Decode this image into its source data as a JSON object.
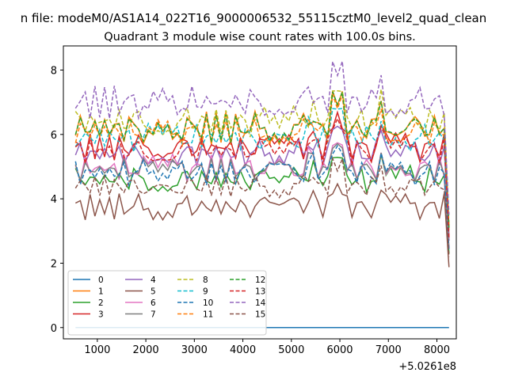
{
  "chart_data": {
    "type": "line",
    "suptitle": "n file: modeM0/AS1A14_022T16_9000006532_55115cztM0_level2_quad_clean",
    "title": "Quadrant 3 module wise count rates with 100.0s bins.",
    "xlabel": "",
    "ylabel": "",
    "x_offset_label": "+5.0261e8",
    "xlim": [
      300,
      8400
    ],
    "ylim": [
      -0.35,
      8.75
    ],
    "xticks": [
      1000,
      2000,
      3000,
      4000,
      5000,
      6000,
      7000,
      8000
    ],
    "yticks": [
      0,
      2,
      4,
      6,
      8
    ],
    "grid": false,
    "legend": {
      "placement": "lower-left",
      "columns": 4
    },
    "x_start": 550,
    "x_step": 100,
    "n_points": 78,
    "series": [
      {
        "name": "0",
        "color": "#1f77b4",
        "dashed": false,
        "base": 0.0,
        "amp": 0.0
      },
      {
        "name": "1",
        "color": "#ff7f0e",
        "dashed": false,
        "base": 6.2,
        "amp": 0.35
      },
      {
        "name": "2",
        "color": "#2ca02c",
        "dashed": false,
        "base": 4.6,
        "amp": 0.3
      },
      {
        "name": "3",
        "color": "#d62728",
        "dashed": false,
        "base": 5.6,
        "amp": 0.3
      },
      {
        "name": "4",
        "color": "#9467bd",
        "dashed": false,
        "base": 5.4,
        "amp": 0.3
      },
      {
        "name": "5",
        "color": "#8c564b",
        "dashed": false,
        "base": 3.75,
        "amp": 0.28
      },
      {
        "name": "6",
        "color": "#e377c2",
        "dashed": false,
        "base": 4.95,
        "amp": 0.3
      },
      {
        "name": "7",
        "color": "#7f7f7f",
        "dashed": false,
        "base": 4.9,
        "amp": 0.25
      },
      {
        "name": "8",
        "color": "#bcbd22",
        "dashed": true,
        "base": 6.4,
        "amp": 0.35
      },
      {
        "name": "9",
        "color": "#17becf",
        "dashed": true,
        "base": 5.9,
        "amp": 0.3
      },
      {
        "name": "10",
        "color": "#1f77b4",
        "dashed": true,
        "base": 4.8,
        "amp": 0.28
      },
      {
        "name": "11",
        "color": "#ff7f0e",
        "dashed": true,
        "base": 6.1,
        "amp": 0.3
      },
      {
        "name": "12",
        "color": "#2ca02c",
        "dashed": true,
        "base": 6.2,
        "amp": 0.3
      },
      {
        "name": "13",
        "color": "#d62728",
        "dashed": true,
        "base": 5.5,
        "amp": 0.3
      },
      {
        "name": "14",
        "color": "#9467bd",
        "dashed": true,
        "base": 7.0,
        "amp": 0.35
      },
      {
        "name": "15",
        "color": "#8c564b",
        "dashed": true,
        "base": 4.4,
        "amp": 0.25
      }
    ]
  }
}
